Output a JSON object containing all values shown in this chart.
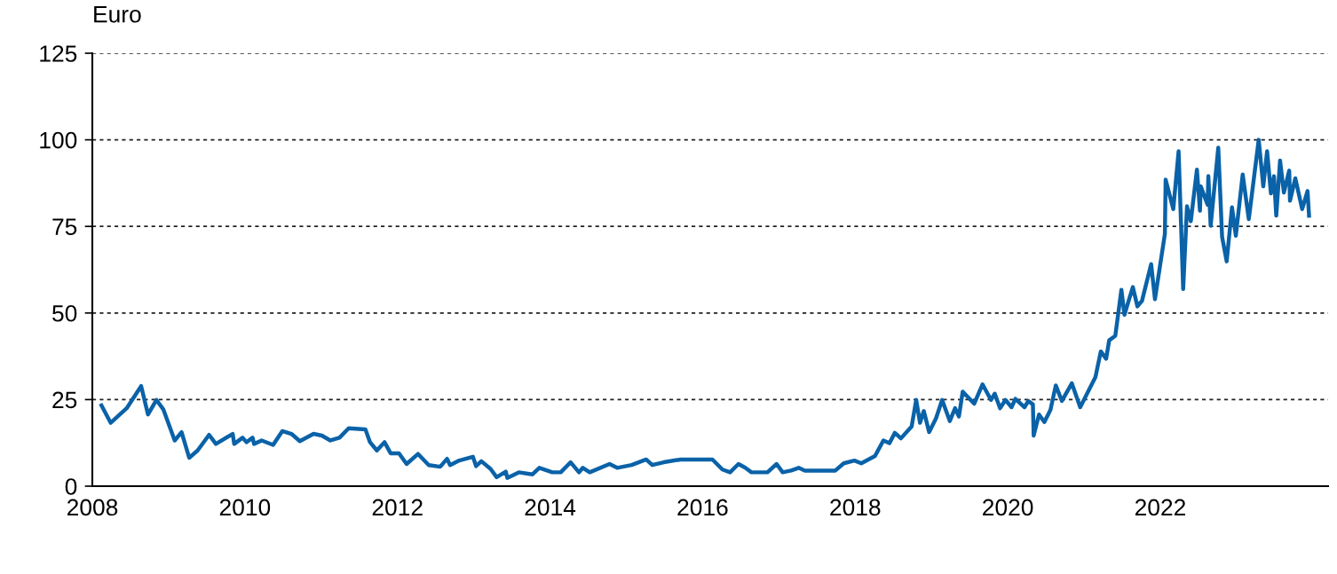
{
  "chart_data": {
    "type": "line",
    "ylabel": "Euro",
    "x": [
      2008.12,
      2008.24,
      2008.45,
      2008.64,
      2008.73,
      2008.84,
      2008.93,
      2009.08,
      2009.17,
      2009.27,
      2009.38,
      2009.53,
      2009.62,
      2009.84,
      2009.86,
      2009.97,
      2010.02,
      2010.1,
      2010.12,
      2010.22,
      2010.37,
      2010.49,
      2010.61,
      2010.72,
      2010.9,
      2011.01,
      2011.12,
      2011.24,
      2011.36,
      2011.58,
      2011.64,
      2011.73,
      2011.83,
      2011.91,
      2012.02,
      2012.12,
      2012.27,
      2012.41,
      2012.56,
      2012.65,
      2012.69,
      2012.81,
      2012.99,
      2013.03,
      2013.1,
      2013.22,
      2013.3,
      2013.42,
      2013.44,
      2013.59,
      2013.77,
      2013.86,
      2014.03,
      2014.14,
      2014.27,
      2014.38,
      2014.43,
      2014.52,
      2014.78,
      2014.88,
      2015.07,
      2015.26,
      2015.34,
      2015.49,
      2015.71,
      2016.13,
      2016.26,
      2016.36,
      2016.47,
      2016.56,
      2016.64,
      2016.85,
      2016.97,
      2017.05,
      2017.16,
      2017.26,
      2017.34,
      2017.74,
      2017.85,
      2017.99,
      2018.08,
      2018.26,
      2018.37,
      2018.45,
      2018.52,
      2018.6,
      2018.74,
      2018.8,
      2018.85,
      2018.9,
      2018.97,
      2019.06,
      2019.14,
      2019.24,
      2019.31,
      2019.36,
      2019.41,
      2019.56,
      2019.67,
      2019.78,
      2019.83,
      2019.9,
      2019.97,
      2020.05,
      2020.1,
      2020.22,
      2020.27,
      2020.33,
      2020.34,
      2020.41,
      2020.48,
      2020.56,
      2020.63,
      2020.71,
      2020.84,
      2020.95,
      2021.15,
      2021.22,
      2021.29,
      2021.33,
      2021.41,
      2021.49,
      2021.53,
      2021.64,
      2021.7,
      2021.76,
      2021.88,
      2021.93,
      2022.06,
      2022.07,
      2022.17,
      2022.24,
      2022.3,
      2022.35,
      2022.4,
      2022.48,
      2022.52,
      2022.53,
      2022.62,
      2022.63,
      2022.66,
      2022.76,
      2022.81,
      2022.87,
      2022.94,
      2022.99,
      2023.08,
      2023.16,
      2023.29,
      2023.35,
      2023.4,
      2023.45,
      2023.49,
      2023.52,
      2023.57,
      2023.62,
      2023.69,
      2023.7,
      2023.77,
      2023.86,
      2023.93,
      2023.95
    ],
    "series": [
      {
        "color": "#0a62a8",
        "values": [
          23.3,
          18.3,
          22.5,
          28.9,
          20.7,
          24.9,
          22.2,
          13.2,
          15.6,
          8.2,
          10.3,
          14.8,
          12.2,
          15.1,
          12.2,
          14.0,
          12.7,
          14.0,
          12.2,
          13.2,
          11.9,
          15.9,
          15.1,
          13.0,
          15.1,
          14.6,
          13.2,
          14.0,
          16.7,
          16.4,
          12.7,
          10.3,
          12.7,
          9.5,
          9.5,
          6.4,
          9.3,
          6.1,
          5.6,
          7.9,
          6.1,
          7.4,
          8.5,
          5.8,
          7.2,
          5.0,
          2.6,
          4.2,
          2.4,
          4.0,
          3.4,
          5.3,
          4.0,
          4.0,
          6.9,
          4.0,
          5.3,
          4.0,
          6.4,
          5.3,
          6.1,
          7.7,
          6.1,
          6.9,
          7.7,
          7.7,
          4.8,
          4.0,
          6.4,
          5.3,
          4.0,
          4.0,
          6.4,
          4.0,
          4.5,
          5.3,
          4.5,
          4.5,
          6.6,
          7.4,
          6.6,
          8.7,
          13.2,
          12.4,
          15.4,
          13.8,
          17.2,
          24.9,
          18.3,
          21.7,
          15.6,
          19.6,
          24.9,
          18.8,
          22.5,
          20.1,
          27.3,
          23.8,
          29.4,
          24.9,
          26.7,
          22.5,
          24.9,
          22.8,
          25.2,
          22.8,
          24.6,
          23.6,
          14.6,
          20.7,
          18.5,
          22.0,
          29.1,
          24.6,
          29.7,
          22.8,
          31.5,
          38.9,
          36.8,
          42.1,
          43.4,
          56.7,
          49.5,
          57.5,
          51.9,
          53.5,
          64.1,
          54.0,
          72.8,
          88.5,
          80.0,
          96.7,
          56.9,
          80.8,
          76.5,
          91.4,
          79.5,
          86.6,
          81.3,
          89.5,
          75.2,
          97.7,
          72.0,
          64.9,
          80.5,
          72.3,
          90.0,
          77.1,
          100.0,
          86.6,
          96.7,
          84.5,
          89.5,
          78.1,
          94.0,
          84.8,
          91.1,
          82.4,
          88.9,
          80.0,
          85.2,
          78.1
        ]
      }
    ],
    "xlim": [
      2008,
      2024.2
    ],
    "xticks": [
      2008,
      2010,
      2012,
      2014,
      2016,
      2018,
      2020,
      2022
    ],
    "ylim": [
      0,
      125
    ],
    "yticks": [
      0,
      25,
      50,
      75,
      100,
      125
    ],
    "grid": "y",
    "line_style": "solid",
    "marker": "none",
    "legend": false
  }
}
